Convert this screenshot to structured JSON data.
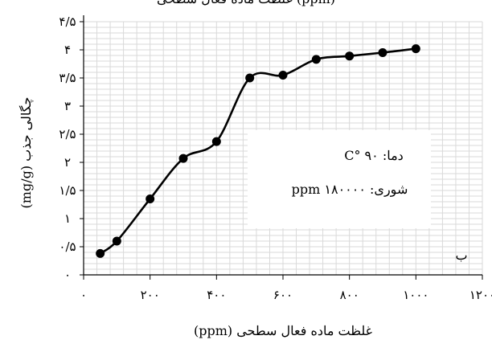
{
  "chart_data": {
    "type": "line",
    "title": "غلظت ماده فعال سطحی (ppm)",
    "xlabel": "غلظت ماده فعال سطحی (ppm)",
    "ylabel": "چگالی جذب (mg/g)",
    "xlim": [
      0,
      1200
    ],
    "ylim": [
      0,
      4.5
    ],
    "x_tick_labels": [
      "۰",
      "۲۰۰",
      "۴۰۰",
      "۶۰۰",
      "۸۰۰",
      "۱۰۰۰",
      "۱۲۰۰"
    ],
    "y_tick_labels": [
      "۰",
      "۰/۵",
      "۱",
      "۱/۵",
      "۲",
      "۲/۵",
      "۳",
      "۳/۵",
      "۴",
      "۴/۵"
    ],
    "grid": true,
    "annotation_lines": [
      "دما: ۹۰ °C",
      "شوری: ۱۸۰۰۰۰ ppm"
    ],
    "panel_label": "ب",
    "series": [
      {
        "x": [
          50,
          100,
          200,
          300,
          400,
          500,
          600,
          700,
          800,
          900,
          1000
        ],
        "y": [
          0.38,
          0.6,
          1.35,
          2.07,
          2.37,
          3.5,
          3.55,
          3.83,
          3.89,
          3.95,
          4.02
        ]
      }
    ],
    "line_color": "#000000",
    "grid_color": "#d9d9d9"
  }
}
